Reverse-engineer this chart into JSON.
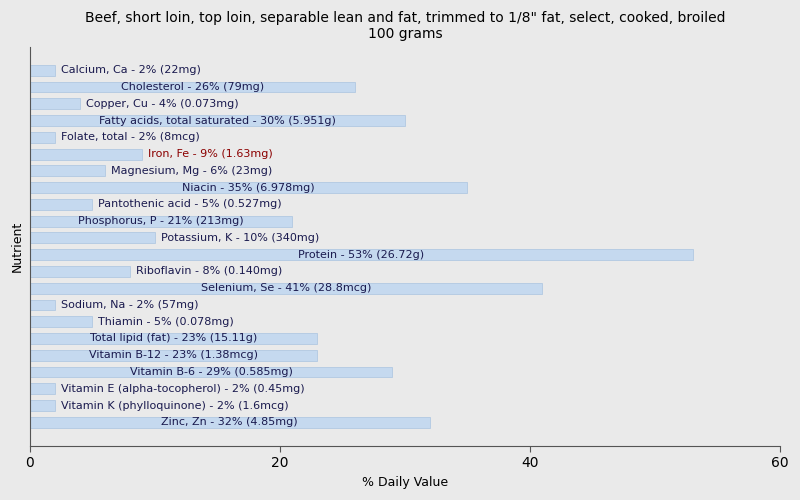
{
  "title": "Beef, short loin, top loin, separable lean and fat, trimmed to 1/8\" fat, select, cooked, broiled\n100 grams",
  "xlabel": "% Daily Value",
  "ylabel": "Nutrient",
  "xlim": [
    0,
    60
  ],
  "xticks": [
    0,
    20,
    40,
    60
  ],
  "background_color": "#eaeaea",
  "plot_bg_color": "#eaeaea",
  "bar_color": "#c5d9ef",
  "bar_edge_color": "#aac4e0",
  "nutrients": [
    "Calcium, Ca - 2% (22mg)",
    "Cholesterol - 26% (79mg)",
    "Copper, Cu - 4% (0.073mg)",
    "Fatty acids, total saturated - 30% (5.951g)",
    "Folate, total - 2% (8mcg)",
    "Iron, Fe - 9% (1.63mg)",
    "Magnesium, Mg - 6% (23mg)",
    "Niacin - 35% (6.978mg)",
    "Pantothenic acid - 5% (0.527mg)",
    "Phosphorus, P - 21% (213mg)",
    "Potassium, K - 10% (340mg)",
    "Protein - 53% (26.72g)",
    "Riboflavin - 8% (0.140mg)",
    "Selenium, Se - 41% (28.8mcg)",
    "Sodium, Na - 2% (57mg)",
    "Thiamin - 5% (0.078mg)",
    "Total lipid (fat) - 23% (15.11g)",
    "Vitamin B-12 - 23% (1.38mcg)",
    "Vitamin B-6 - 29% (0.585mg)",
    "Vitamin E (alpha-tocopherol) - 2% (0.45mg)",
    "Vitamin K (phylloquinone) - 2% (1.6mcg)",
    "Zinc, Zn - 32% (4.85mg)"
  ],
  "values": [
    2,
    26,
    4,
    30,
    2,
    9,
    6,
    35,
    5,
    21,
    10,
    53,
    8,
    41,
    2,
    5,
    23,
    23,
    29,
    2,
    2,
    32
  ],
  "text_color": "#1a1a4e",
  "iron_text_color": "#8B0000",
  "title_fontsize": 10,
  "label_fontsize": 8,
  "tick_fontsize": 9,
  "bar_height": 0.65,
  "text_threshold": 12
}
